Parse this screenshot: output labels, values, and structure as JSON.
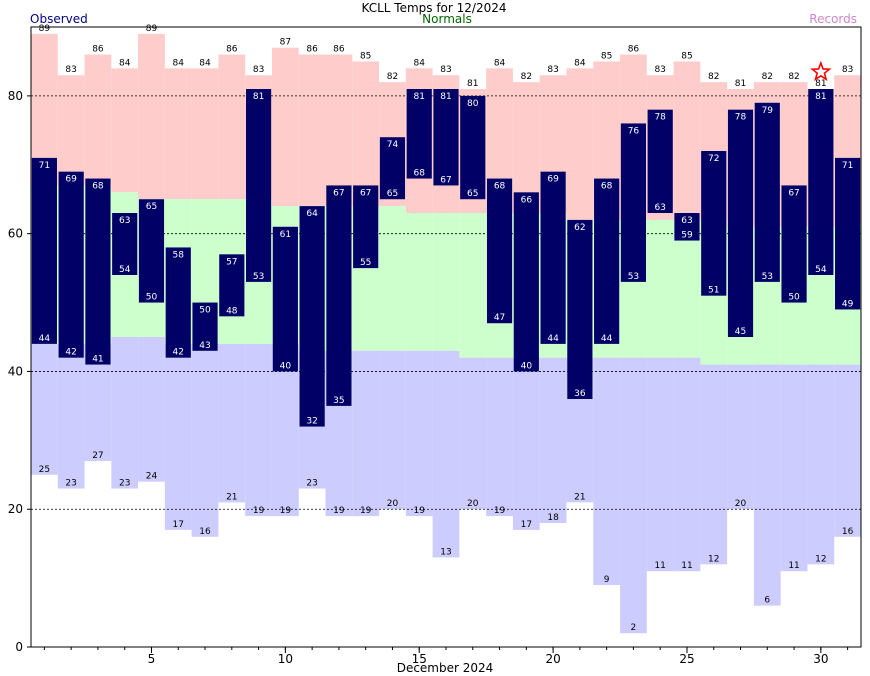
{
  "chart_data": {
    "type": "bar",
    "title": "KCLL Temps for 12/2024",
    "xlabel": "December 2024",
    "ylabel": "",
    "ylim": [
      0,
      90
    ],
    "xlim": [
      0.5,
      31.5
    ],
    "yticks": [
      0,
      20,
      40,
      60,
      80
    ],
    "xticks": [
      5,
      10,
      15,
      20,
      25,
      30
    ],
    "grid": "dashed horizontal at y ticks",
    "legend": [
      "Observed",
      "Normals",
      "Records"
    ],
    "colors": {
      "observed": "#000066",
      "normals": "#ccffcc",
      "record_high": "#ffcccc",
      "record_low": "#ccccff",
      "legend_observed": "#000080",
      "legend_normals": "#006600",
      "legend_records": "#cc88cc",
      "marker": "#ff0000"
    },
    "days": [
      1,
      2,
      3,
      4,
      5,
      6,
      7,
      8,
      9,
      10,
      11,
      12,
      13,
      14,
      15,
      16,
      17,
      18,
      19,
      20,
      21,
      22,
      23,
      24,
      25,
      26,
      27,
      28,
      29,
      30,
      31
    ],
    "observed_high": [
      71,
      69,
      68,
      63,
      65,
      58,
      50,
      57,
      81,
      61,
      64,
      67,
      67,
      74,
      81,
      81,
      80,
      68,
      66,
      69,
      62,
      68,
      76,
      78,
      63,
      72,
      78,
      79,
      67,
      81,
      71
    ],
    "observed_low": [
      44,
      42,
      41,
      54,
      50,
      42,
      43,
      48,
      53,
      40,
      32,
      35,
      55,
      65,
      68,
      67,
      65,
      47,
      40,
      44,
      36,
      44,
      53,
      63,
      59,
      51,
      45,
      53,
      50,
      54,
      49
    ],
    "normal_high": [
      67,
      67,
      67,
      66,
      65,
      65,
      65,
      65,
      65,
      64,
      64,
      64,
      64,
      64,
      63,
      63,
      63,
      63,
      63,
      63,
      62,
      62,
      62,
      62,
      62,
      62,
      61,
      61,
      61,
      61,
      61
    ],
    "normal_low": [
      44,
      44,
      44,
      45,
      45,
      44,
      44,
      44,
      44,
      44,
      43,
      43,
      43,
      43,
      43,
      43,
      42,
      42,
      42,
      42,
      42,
      42,
      42,
      42,
      42,
      41,
      41,
      41,
      41,
      41,
      41
    ],
    "record_high": [
      89,
      83,
      86,
      84,
      89,
      84,
      84,
      86,
      83,
      87,
      86,
      86,
      85,
      82,
      84,
      83,
      81,
      84,
      82,
      83,
      84,
      85,
      86,
      83,
      85,
      82,
      81,
      82,
      82,
      81,
      83
    ],
    "record_low": [
      25,
      23,
      27,
      23,
      24,
      17,
      16,
      21,
      19,
      19,
      23,
      19,
      19,
      20,
      19,
      13,
      20,
      19,
      17,
      18,
      21,
      9,
      2,
      11,
      11,
      12,
      20,
      6,
      11,
      12,
      16
    ],
    "record_marker_day": 30
  }
}
